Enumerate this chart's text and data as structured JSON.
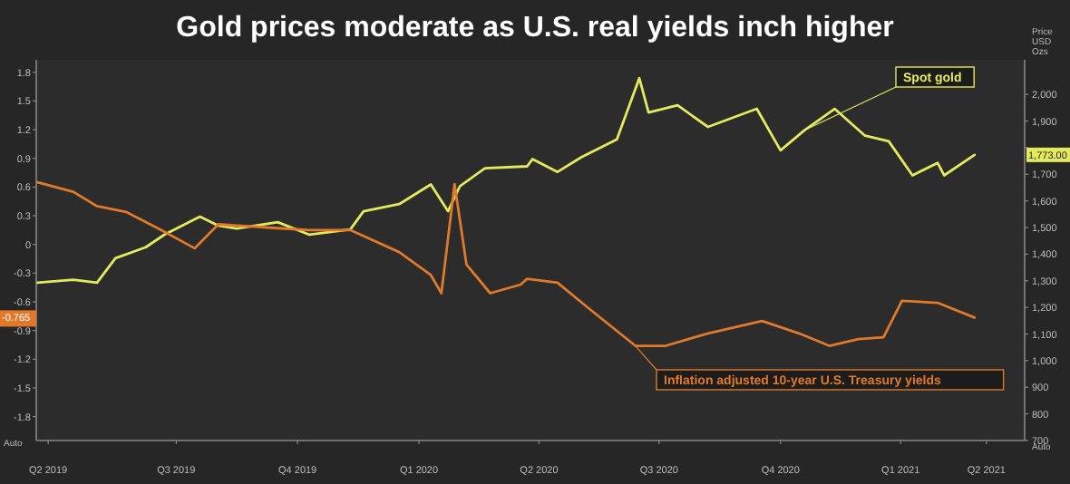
{
  "chart_data": {
    "type": "line",
    "title": "Gold prices moderate as U.S. real yields inch higher",
    "y2label": "Price USD Ozs",
    "xlim": [
      "2019-05-01",
      "2021-05-19"
    ],
    "xticks": [
      {
        "value": "2019-05-10",
        "label": "Q2 2019"
      },
      {
        "value": "2019-08-15",
        "label": "Q3 2019"
      },
      {
        "value": "2019-11-15",
        "label": "Q4 2019"
      },
      {
        "value": "2020-02-15",
        "label": "Q1 2020"
      },
      {
        "value": "2020-05-16",
        "label": "Q2 2020"
      },
      {
        "value": "2020-08-15",
        "label": "Q3 2020"
      },
      {
        "value": "2020-11-15",
        "label": "Q4 2020"
      },
      {
        "value": "2021-02-14",
        "label": "Q1 2021"
      },
      {
        "value": "2021-04-20",
        "label": "Q2 2021"
      }
    ],
    "ylim": [
      -2.05,
      1.93
    ],
    "yticks": [
      1.8,
      1.5,
      1.2,
      0.9,
      0.6,
      0.3,
      0,
      -0.3,
      -0.6,
      -0.9,
      -1.2,
      -1.5,
      -1.8
    ],
    "y2lim": [
      700,
      2130
    ],
    "y2ticks": [
      {
        "value": 2000,
        "label": "2,000"
      },
      {
        "value": 1900,
        "label": "1,900"
      },
      {
        "value": 1800,
        "label": null
      },
      {
        "value": 1700,
        "label": "1,700"
      },
      {
        "value": 1600,
        "label": "1,600"
      },
      {
        "value": 1500,
        "label": "1,500"
      },
      {
        "value": 1400,
        "label": "1,400"
      },
      {
        "value": 1300,
        "label": "1,300"
      },
      {
        "value": 1200,
        "label": "1,200"
      },
      {
        "value": 1100,
        "label": "1,100"
      },
      {
        "value": 1000,
        "label": "1,000"
      },
      {
        "value": 900,
        "label": "900"
      },
      {
        "value": 800,
        "label": "800"
      },
      {
        "value": 700,
        "label": "700"
      }
    ],
    "series": [
      {
        "name": "Spot gold",
        "color": "#e3ea5c",
        "axis": "y2",
        "x": [
          "2019-05-02",
          "2019-05-29",
          "2019-06-16",
          "2019-06-30",
          "2019-07-23",
          "2019-08-06",
          "2019-09-02",
          "2019-09-16",
          "2019-09-30",
          "2019-10-31",
          "2019-11-24",
          "2019-12-25",
          "2020-01-04",
          "2020-01-31",
          "2020-02-24",
          "2020-03-08",
          "2020-03-17",
          "2020-04-05",
          "2020-05-07",
          "2020-05-11",
          "2020-05-30",
          "2020-06-17",
          "2020-07-14",
          "2020-07-31",
          "2020-08-07",
          "2020-08-29",
          "2020-09-21",
          "2020-10-28",
          "2020-11-15",
          "2020-12-03",
          "2020-12-26",
          "2021-01-18",
          "2021-02-05",
          "2021-02-23",
          "2021-03-14",
          "2021-03-19",
          "2021-04-11"
        ],
        "values": [
          1293,
          1304,
          1293,
          1385,
          1426,
          1473,
          1541,
          1507,
          1496,
          1520,
          1473,
          1493,
          1561,
          1588,
          1662,
          1561,
          1655,
          1723,
          1730,
          1757,
          1709,
          1764,
          1831,
          2061,
          1932,
          1959,
          1878,
          1946,
          1790,
          1865,
          1946,
          1845,
          1824,
          1696,
          1743,
          1696,
          1773
        ]
      },
      {
        "name": "Inflation adjusted 10-year U.S. Treasury yields",
        "color": "#e07a2a",
        "x": [
          "2019-05-02",
          "2019-05-29",
          "2019-06-16",
          "2019-07-08",
          "2019-08-01",
          "2019-08-29",
          "2019-09-16",
          "2019-10-31",
          "2019-11-24",
          "2019-12-25",
          "2020-01-31",
          "2020-02-24",
          "2020-03-03",
          "2020-03-13",
          "2020-03-22",
          "2020-04-09",
          "2020-05-02",
          "2020-05-07",
          "2020-05-30",
          "2020-06-21",
          "2020-07-28",
          "2020-08-20",
          "2020-09-21",
          "2020-11-01",
          "2020-11-29",
          "2020-12-22",
          "2021-01-13",
          "2021-02-01",
          "2021-02-15",
          "2021-03-14",
          "2021-04-11"
        ],
        "values": [
          0.65,
          0.55,
          0.4,
          0.34,
          0.17,
          -0.04,
          0.21,
          0.17,
          0.15,
          0.15,
          -0.08,
          -0.32,
          -0.51,
          0.63,
          -0.21,
          -0.51,
          -0.42,
          -0.36,
          -0.4,
          -0.65,
          -1.06,
          -1.06,
          -0.93,
          -0.8,
          -0.93,
          -1.06,
          -0.99,
          -0.97,
          -0.59,
          -0.61,
          -0.765
        ]
      }
    ],
    "annotations": [
      "-0.765",
      "1,773.00",
      "Auto",
      "Auto"
    ]
  }
}
